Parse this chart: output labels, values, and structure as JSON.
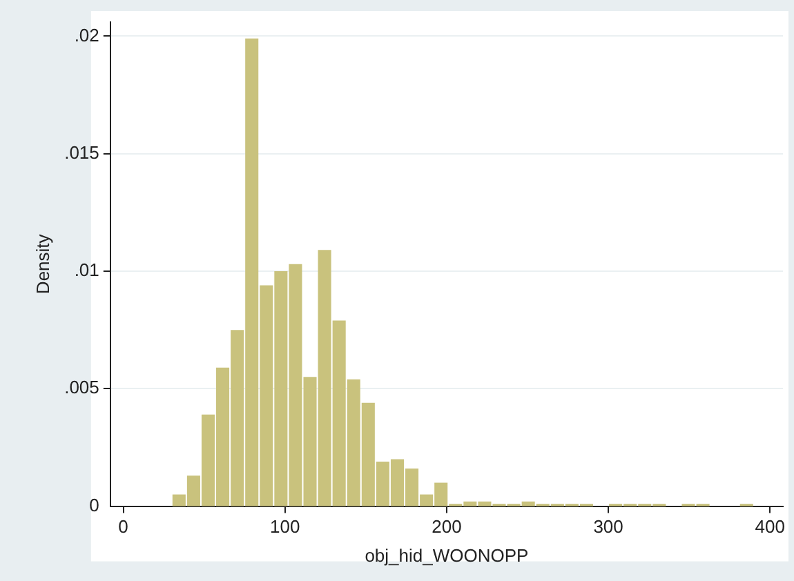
{
  "chart_data": {
    "type": "histogram",
    "xlabel": "obj_hid_WOONOPP",
    "ylabel": "Density",
    "bins": [
      30,
      39,
      48,
      57,
      66,
      75,
      84,
      93,
      102,
      111,
      120,
      129,
      138,
      147,
      156,
      165,
      174,
      183,
      192,
      201,
      210,
      219,
      228,
      237,
      246,
      255,
      264,
      273,
      282,
      291,
      300,
      309,
      318,
      327,
      336,
      345,
      354,
      363,
      372,
      381,
      390
    ],
    "values": [
      0.0005,
      0.0013,
      0.0039,
      0.0059,
      0.0075,
      0.0199,
      0.0094,
      0.01,
      0.0103,
      0.0055,
      0.0109,
      0.0079,
      0.0054,
      0.0044,
      0.0019,
      0.002,
      0.0016,
      0.0005,
      0.001,
      0.0001,
      0.0002,
      0.0002,
      0.0001,
      0.0001,
      0.0002,
      0.0001,
      0.0001,
      0.0001,
      0.0001,
      0,
      0.0001,
      0.0001,
      0.0001,
      0.0001,
      0,
      0.0001,
      0.0001,
      0,
      0,
      0.0001
    ],
    "color": "#c9c27d",
    "xlim": [
      -8,
      408
    ],
    "xticks": [
      0,
      100,
      200,
      300,
      400
    ],
    "ylim": [
      0,
      0.0206
    ],
    "yticks": [
      0,
      {
        "value": 0.005,
        "label": ".005"
      },
      {
        "value": 0.01,
        "label": ".01"
      },
      {
        "value": 0.015,
        "label": ".015"
      },
      {
        "value": 0.02,
        "label": ".02"
      }
    ],
    "grid": "y",
    "legend": false
  }
}
